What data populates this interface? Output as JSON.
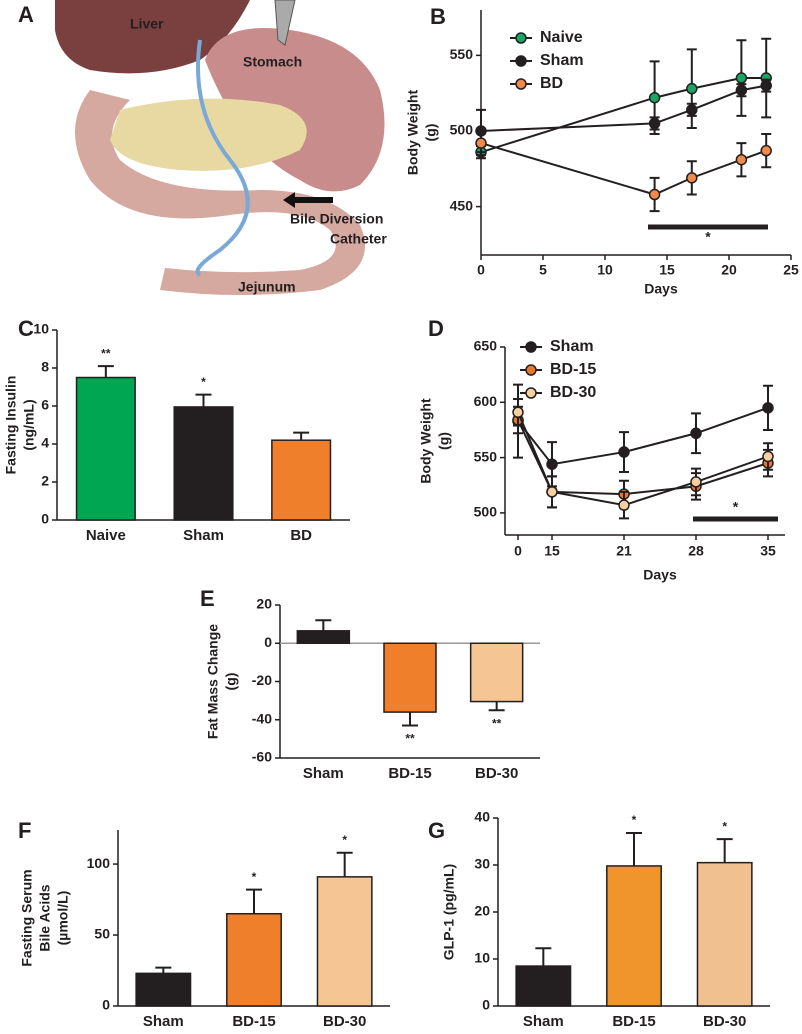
{
  "illustration": {
    "panel_label": "A",
    "labels": [
      "Liver",
      "Stomach",
      "Bile Diversion",
      "Catheter",
      "Jejunum"
    ]
  },
  "chart_data": [
    {
      "type": "line",
      "panel_label": "B",
      "xlabel": "Days",
      "ylabel": [
        "Body  Weight",
        "(g)"
      ],
      "x": [
        0,
        14,
        17,
        21,
        23
      ],
      "xlim": [
        0,
        25
      ],
      "xticks": [
        0,
        5,
        10,
        15,
        20,
        25
      ],
      "ylim": [
        418,
        580
      ],
      "yticks": [
        450,
        500,
        550
      ],
      "series": [
        {
          "name": "Naive",
          "color": "#1aa563",
          "values": [
            486,
            522,
            528,
            535,
            535
          ],
          "errors": [
            4,
            24,
            26,
            25,
            26
          ]
        },
        {
          "name": "Sham",
          "color": "#231f20",
          "values": [
            500,
            505,
            514,
            527,
            530
          ],
          "errors": [
            14,
            4,
            4,
            4,
            4
          ]
        },
        {
          "name": "BD",
          "color": "#f08a4b",
          "values": [
            492,
            458,
            469,
            481,
            487
          ],
          "errors": [
            8,
            11,
            11,
            11,
            11
          ]
        }
      ],
      "significance_bar": "*"
    },
    {
      "type": "bar",
      "panel_label": "C",
      "ylabel": [
        "Fasting Insulin",
        "(ng/mL)"
      ],
      "categories": [
        "Naive",
        "Sham",
        "BD"
      ],
      "values": [
        7.5,
        5.95,
        4.2
      ],
      "errors": [
        0.6,
        0.65,
        0.4
      ],
      "colors": [
        "#00a651",
        "#231f20",
        "#f07f2b"
      ],
      "significance": [
        "**",
        "*",
        null
      ],
      "ylim": [
        0,
        10
      ],
      "yticks": [
        0,
        2,
        4,
        6,
        8,
        10
      ]
    },
    {
      "type": "line",
      "panel_label": "D",
      "xlabel": "Days",
      "ylabel": [
        "Body Weight",
        "(g)"
      ],
      "categories": [
        "0",
        "15",
        "21",
        "28",
        "35"
      ],
      "ylim": [
        480,
        650
      ],
      "yticks": [
        500,
        550,
        600,
        650
      ],
      "series": [
        {
          "name": "Sham",
          "color": "#231f20",
          "values": [
            583,
            544,
            555,
            572,
            595
          ],
          "errors": [
            33,
            20,
            18,
            18,
            20
          ]
        },
        {
          "name": "BD-15",
          "color": "#e8792b",
          "values": [
            584,
            519,
            517,
            524,
            545
          ],
          "errors": [
            12,
            14,
            12,
            12,
            12
          ]
        },
        {
          "name": "BD-30",
          "color": "#f7cfa0",
          "values": [
            591,
            519,
            507,
            528,
            551
          ],
          "errors": [
            12,
            14,
            12,
            12,
            12
          ]
        }
      ],
      "significance_bar": "*"
    },
    {
      "type": "bar",
      "panel_label": "E",
      "ylabel": [
        "Fat  Mass Change",
        "(g)"
      ],
      "categories": [
        "Sham",
        "BD-15",
        "BD-30"
      ],
      "values": [
        6.5,
        -36,
        -30.5
      ],
      "errors": [
        5.5,
        7,
        4.5
      ],
      "colors": [
        "#231f20",
        "#f07f2b",
        "#f5c593"
      ],
      "significance": [
        null,
        "**",
        "**"
      ],
      "ylim": [
        -60,
        20
      ],
      "yticks": [
        -60,
        -40,
        -20,
        0,
        20
      ]
    },
    {
      "type": "bar",
      "panel_label": "F",
      "ylabel": [
        "Fasting Serum",
        "Bile Acids",
        "(µmol/L)"
      ],
      "categories": [
        "Sham",
        "BD-15",
        "BD-30"
      ],
      "values": [
        23,
        65,
        91
      ],
      "errors": [
        4,
        17,
        17
      ],
      "colors": [
        "#231f20",
        "#f07f2b",
        "#f5c593"
      ],
      "significance": [
        null,
        "*",
        "*"
      ],
      "ylim": [
        0,
        124
      ],
      "yticks": [
        0,
        50,
        100
      ]
    },
    {
      "type": "bar",
      "panel_label": "G",
      "ylabel": [
        "GLP-1 (pg/mL)"
      ],
      "categories": [
        "Sham",
        "BD-15",
        "BD-30"
      ],
      "values": [
        8.5,
        29.8,
        30.5
      ],
      "errors": [
        3.8,
        7,
        5
      ],
      "colors": [
        "#231f20",
        "#f0952b",
        "#f0c090"
      ],
      "significance": [
        null,
        "*",
        "*"
      ],
      "ylim": [
        0,
        40
      ],
      "yticks": [
        0,
        10,
        20,
        30,
        40
      ]
    }
  ]
}
